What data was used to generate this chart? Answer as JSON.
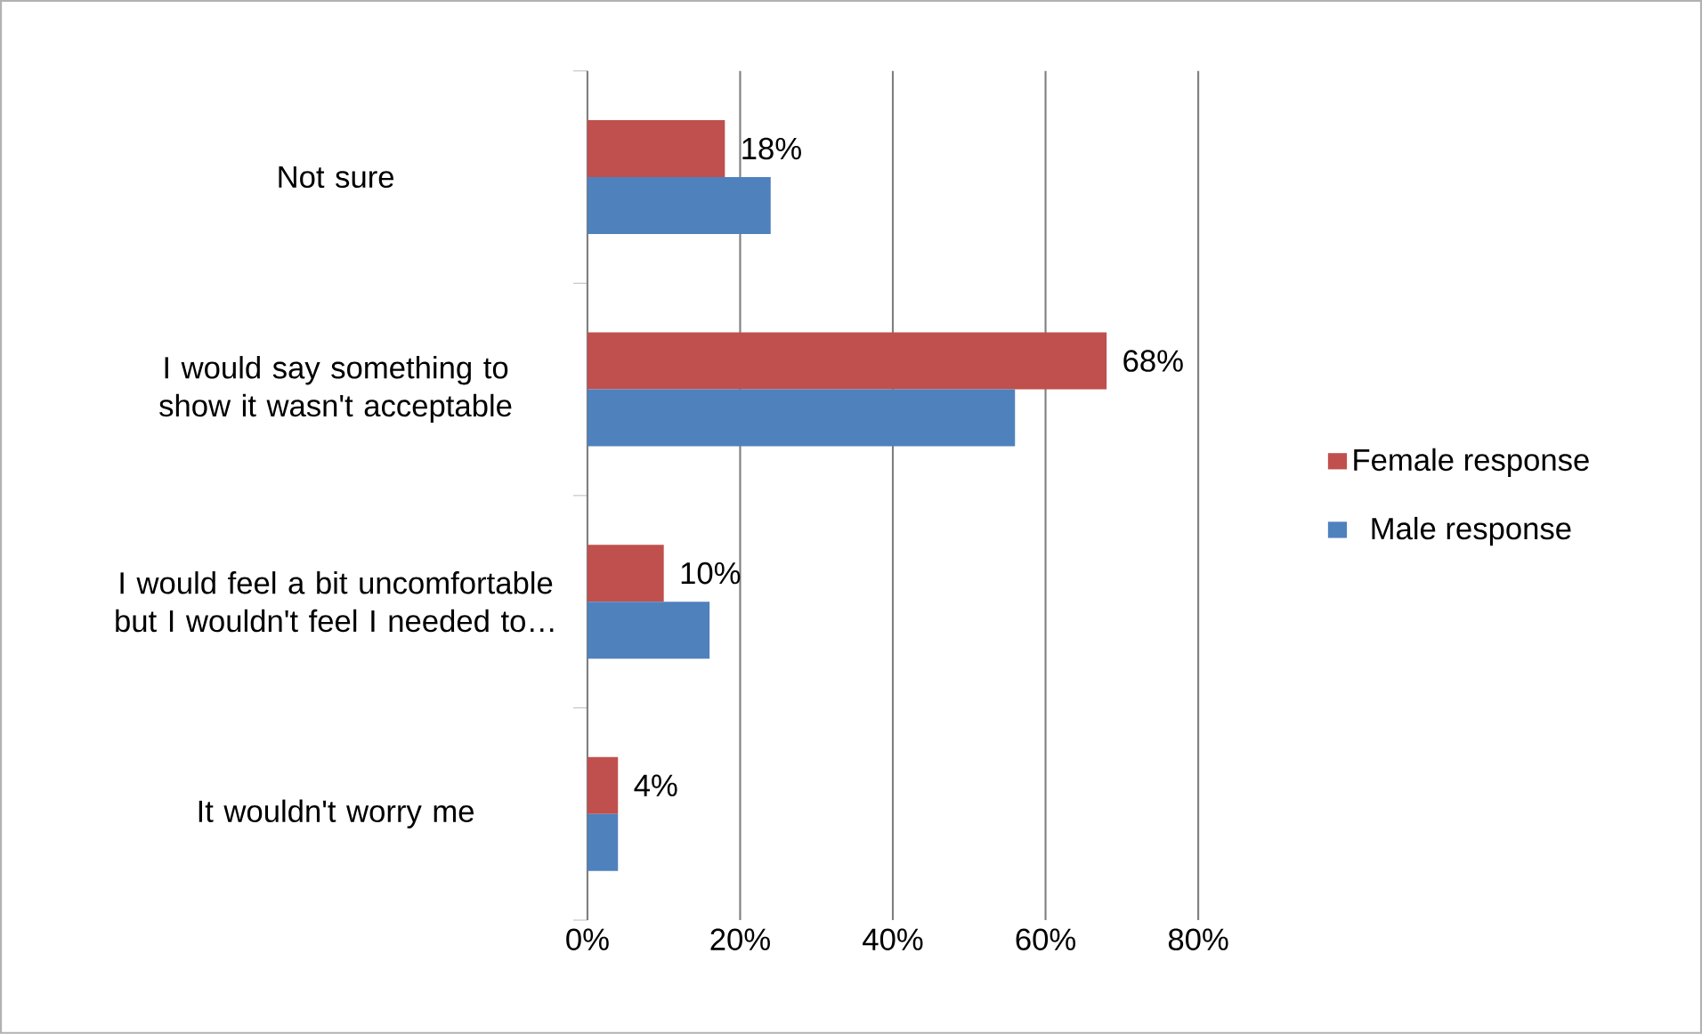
{
  "chart_data": {
    "type": "bar",
    "orientation": "horizontal",
    "categories": [
      "Not sure",
      "I would say something to show it wasn't acceptable",
      "I would feel a bit uncomfortable but I wouldn't feel I needed to…",
      "It wouldn't worry me"
    ],
    "series": [
      {
        "name": "Female response",
        "color": "#c0504d",
        "values": [
          18,
          68,
          10,
          4
        ],
        "value_labels": [
          "18%",
          "68%",
          "10%",
          "4%"
        ]
      },
      {
        "name": "Male response",
        "color": "#4f81bd",
        "values": [
          24,
          56,
          16,
          4
        ]
      }
    ],
    "xlim": [
      0,
      80
    ],
    "xticks": [
      {
        "value": 0,
        "label": "0%"
      },
      {
        "value": 20,
        "label": "20%"
      },
      {
        "value": 40,
        "label": "40%"
      },
      {
        "value": 60,
        "label": "60%"
      },
      {
        "value": 80,
        "label": "80%"
      }
    ],
    "grid": "x",
    "legend": "right"
  }
}
